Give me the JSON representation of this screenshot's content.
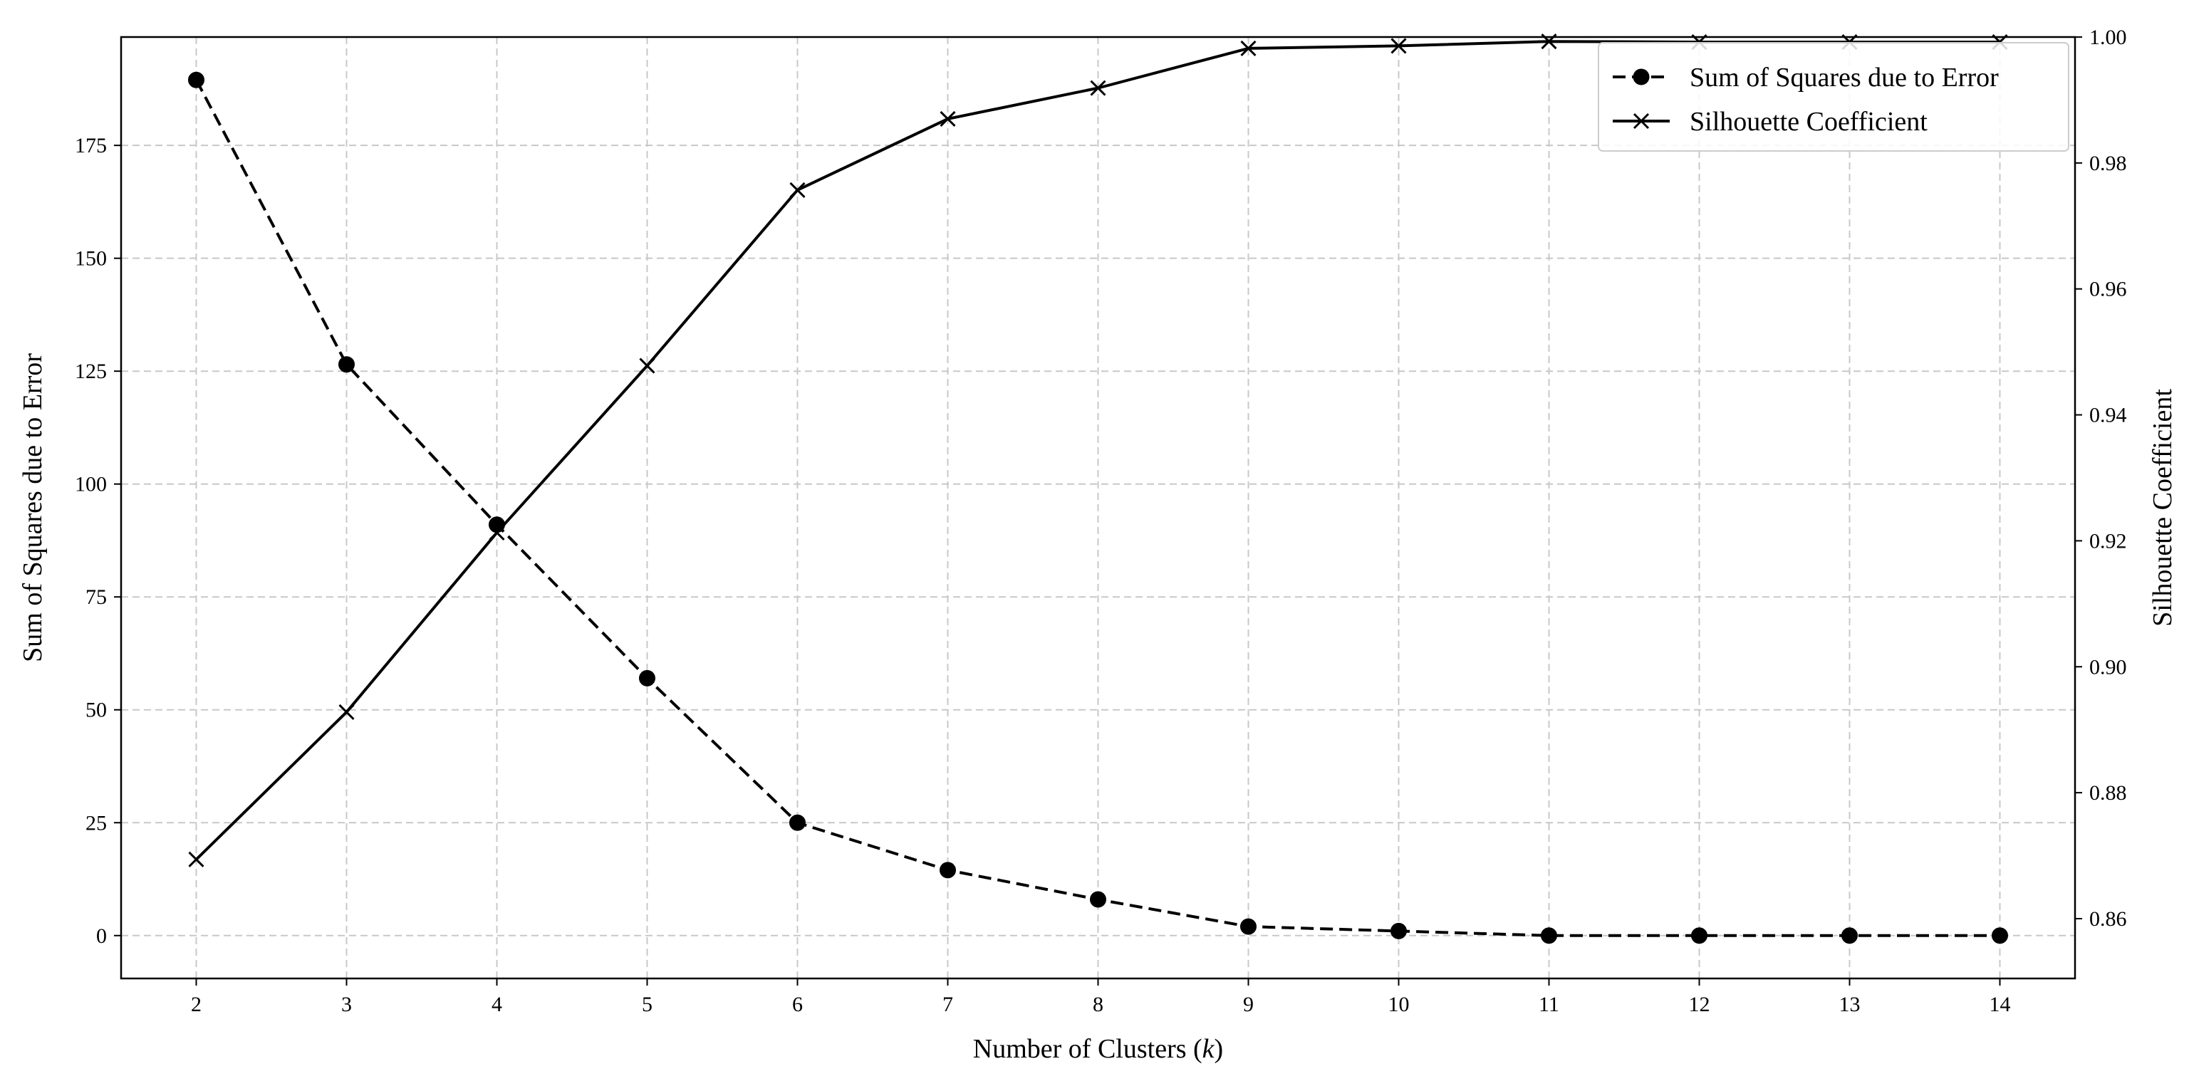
{
  "chart_data": {
    "type": "line",
    "x": [
      2,
      3,
      4,
      5,
      6,
      7,
      8,
      9,
      10,
      11,
      12,
      13,
      14
    ],
    "xlabel": "Number of Clusters (",
    "xlabel_var": "k",
    "xlabel_end": ")",
    "xlim": [
      1.5,
      14.5
    ],
    "grid": true,
    "legend_position": "top-right",
    "y_left": {
      "label": "Sum of Squares due to Error",
      "lim": [
        -9.5,
        199
      ],
      "ticks": [
        0,
        25,
        50,
        75,
        100,
        125,
        150,
        175
      ],
      "tick_labels": [
        "0",
        "25",
        "50",
        "75",
        "100",
        "125",
        "150",
        "175"
      ]
    },
    "y_right": {
      "label": "Silhouette Coefficient",
      "lim": [
        0.8505,
        1.0
      ],
      "ticks": [
        0.86,
        0.88,
        0.9,
        0.92,
        0.94,
        0.96,
        0.98,
        1.0
      ],
      "tick_labels": [
        "0.86",
        "0.88",
        "0.90",
        "0.92",
        "0.94",
        "0.96",
        "0.98",
        "1.00"
      ]
    },
    "series": [
      {
        "name": "Sum of Squares due to Error",
        "axis": "left",
        "line_style": "dashed",
        "marker": "circle",
        "color": "#000000",
        "values": [
          189.5,
          126.5,
          91.0,
          57.0,
          25.0,
          14.5,
          8.0,
          2.0,
          1.0,
          0.0,
          0.0,
          0.0,
          0.0
        ]
      },
      {
        "name": "Silhouette Coefficient",
        "axis": "right",
        "line_style": "solid",
        "marker": "x",
        "color": "#000000",
        "values": [
          0.8694,
          0.8928,
          0.9213,
          0.9478,
          0.9757,
          0.987,
          0.9919,
          0.9982,
          0.9986,
          0.9993,
          0.9992,
          0.9992,
          0.9992
        ]
      }
    ]
  }
}
